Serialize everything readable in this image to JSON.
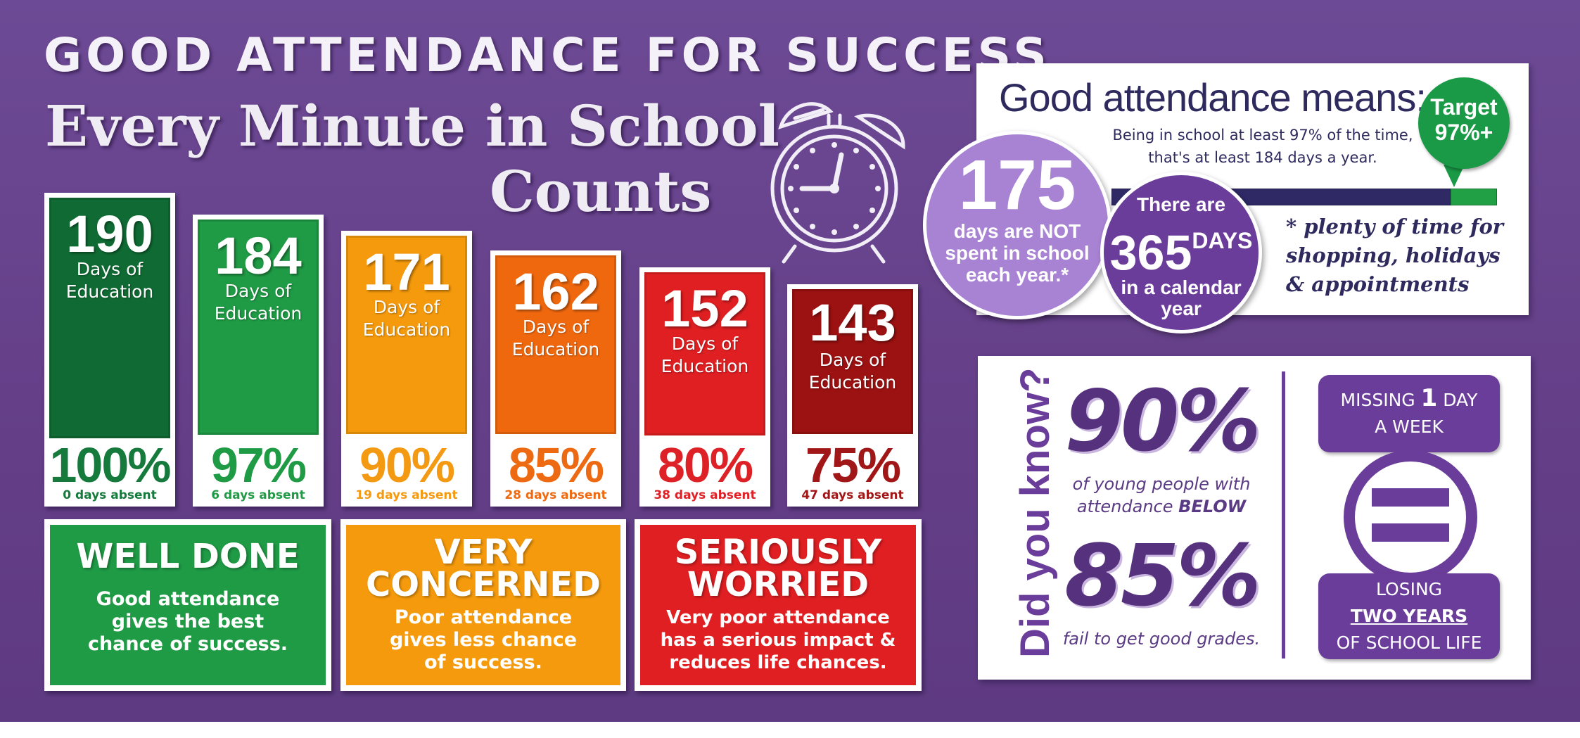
{
  "header": {
    "title": "GOOD ATTENDANCE FOR SUCCESS",
    "subtitle_line1": "Every Minute in School",
    "subtitle_line2": "Counts"
  },
  "cards": [
    {
      "days": "190",
      "label_line1": "Days of",
      "label_line2": "Education",
      "percent": "100%",
      "absent": "0 days absent",
      "color": "#0f6b33",
      "text_color": "#157a3c"
    },
    {
      "days": "184",
      "label_line1": "Days of",
      "label_line2": "Education",
      "percent": "97%",
      "absent": "6 days absent",
      "color": "#1f9a45",
      "text_color": "#1f9a45"
    },
    {
      "days": "171",
      "label_line1": "Days of",
      "label_line2": "Education",
      "percent": "90%",
      "absent": "19 days absent",
      "color": "#f59a0c",
      "text_color": "#f39a12"
    },
    {
      "days": "162",
      "label_line1": "Days of",
      "label_line2": "Education",
      "percent": "85%",
      "absent": "28 days absent",
      "color": "#f0680e",
      "text_color": "#ee6a12"
    },
    {
      "days": "152",
      "label_line1": "Days of",
      "label_line2": "Education",
      "percent": "80%",
      "absent": "38 days absent",
      "color": "#e01f22",
      "text_color": "#dd2126"
    },
    {
      "days": "143",
      "label_line1": "Days of",
      "label_line2": "Education",
      "percent": "75%",
      "absent": "47 days absent",
      "color": "#9c1111",
      "text_color": "#a11616"
    }
  ],
  "messages": [
    {
      "heading": "WELL DONE",
      "body": "Good attendance\ngives the best\nchance of success.",
      "color": "#1f9a45"
    },
    {
      "heading": "VERY\nCONCERNED",
      "body": "Poor attendance\ngives less chance\nof success.",
      "color": "#f59a0c"
    },
    {
      "heading": "SERIOUSLY\nWORRIED",
      "body": "Very poor attendance\nhas a serious impact &\nreduces life chances.",
      "color": "#e01f22"
    }
  ],
  "good_attendance": {
    "title": "Good attendance means:",
    "line1": "Being in school at least 97% of the time,",
    "line2": "that's at least 184 days a year.",
    "target_label": "Target",
    "target_value": "97%+",
    "target_fraction": 0.97,
    "circle_175_number": "175",
    "circle_175_text": "days are NOT\nspent in school\neach year.*",
    "circle_365_top": "There are",
    "circle_365_number": "365",
    "circle_365_days": "DAYS",
    "circle_365_bottom1": "in a calendar",
    "circle_365_bottom2": "year",
    "note": "* plenty of time for\nshopping, holidays\n& appointments"
  },
  "did_you_know": {
    "heading": "Did you know?",
    "pct1": "90%",
    "text1_line1": "of young people with",
    "text1_line2_pre": "attendance ",
    "text1_line2_bold": "BELOW",
    "pct2": "85%",
    "text2": "fail to get good grades.",
    "missing_pre": "MISSING ",
    "missing_num": "1",
    "missing_post": " DAY",
    "missing_line2": "A WEEK",
    "losing_line1": "LOSING",
    "losing_line2": "TWO YEARS",
    "losing_line3": "OF SCHOOL LIFE"
  }
}
